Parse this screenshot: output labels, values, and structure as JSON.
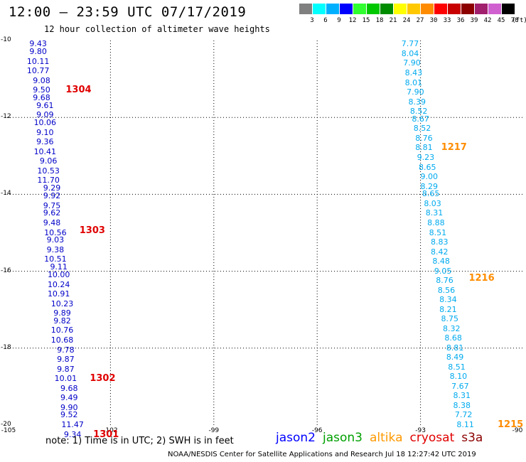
{
  "header": {
    "title": "12:00 – 23:59 UTC 07/17/2019",
    "subtitle": "12 hour collection of altimeter wave heights"
  },
  "scale": {
    "unit": "(ft)",
    "bins": [
      {
        "label": "3",
        "color": "#808080"
      },
      {
        "label": "6",
        "color": "#00ffff"
      },
      {
        "label": "9",
        "color": "#00b0ff"
      },
      {
        "label": "12",
        "color": "#0000ff"
      },
      {
        "label": "15",
        "color": "#30ff30"
      },
      {
        "label": "18",
        "color": "#00c800"
      },
      {
        "label": "21",
        "color": "#008c00"
      },
      {
        "label": "24",
        "color": "#ffff00"
      },
      {
        "label": "27",
        "color": "#ffc800"
      },
      {
        "label": "30",
        "color": "#ff8c00"
      },
      {
        "label": "33",
        "color": "#ff0000"
      },
      {
        "label": "36",
        "color": "#c80000"
      },
      {
        "label": "39",
        "color": "#8c0000"
      },
      {
        "label": "42",
        "color": "#a0206e"
      },
      {
        "label": "45",
        "color": "#d060d0"
      },
      {
        "label": "70",
        "color": "#000000"
      }
    ]
  },
  "map": {
    "lon_ticks": [
      "-105",
      "-102",
      "-99",
      "-96",
      "-93",
      "-90"
    ],
    "lat_ticks": [
      "-10",
      "-12",
      "-14",
      "-16",
      "-18",
      "-20"
    ],
    "lon_range": [
      -105,
      -90
    ],
    "lat_range": [
      -20,
      -10
    ]
  },
  "tracks": [
    {
      "color": "#0000c8",
      "points": [
        {
          "lat": -10.1,
          "lon": -104.1,
          "v": "9.43"
        },
        {
          "lat": -10.3,
          "lon": -104.1,
          "v": "9.80"
        },
        {
          "lat": -10.55,
          "lon": -104.1,
          "v": "10.11"
        },
        {
          "lat": -10.8,
          "lon": -104.1,
          "v": "10.77"
        },
        {
          "lat": -11.05,
          "lon": -104.0,
          "v": "9.08"
        },
        {
          "lat": -11.3,
          "lon": -104.0,
          "v": "9.50"
        },
        {
          "lat": -11.5,
          "lon": -104.0,
          "v": "9.68"
        },
        {
          "lat": -11.7,
          "lon": -103.9,
          "v": "9.61"
        },
        {
          "lat": -11.95,
          "lon": -103.9,
          "v": "9.09"
        },
        {
          "lat": -12.15,
          "lon": -103.9,
          "v": "10.06"
        },
        {
          "lat": -12.4,
          "lon": -103.9,
          "v": "9.10"
        },
        {
          "lat": -12.65,
          "lon": -103.9,
          "v": "9.36"
        },
        {
          "lat": -12.9,
          "lon": -103.9,
          "v": "10.41"
        },
        {
          "lat": -13.15,
          "lon": -103.8,
          "v": "9.06"
        },
        {
          "lat": -13.4,
          "lon": -103.8,
          "v": "10.53"
        },
        {
          "lat": -13.65,
          "lon": -103.8,
          "v": "11.70"
        },
        {
          "lat": -13.85,
          "lon": -103.7,
          "v": "9.29"
        },
        {
          "lat": -14.05,
          "lon": -103.7,
          "v": "9.92"
        },
        {
          "lat": -14.3,
          "lon": -103.7,
          "v": "9.75"
        },
        {
          "lat": -14.5,
          "lon": -103.7,
          "v": "9.62"
        },
        {
          "lat": -14.75,
          "lon": -103.7,
          "v": "9.48"
        },
        {
          "lat": -15.0,
          "lon": -103.6,
          "v": "10.56"
        },
        {
          "lat": -15.2,
          "lon": -103.6,
          "v": "9.03"
        },
        {
          "lat": -15.45,
          "lon": -103.6,
          "v": "9.38"
        },
        {
          "lat": -15.7,
          "lon": -103.6,
          "v": "10.51"
        },
        {
          "lat": -15.9,
          "lon": -103.5,
          "v": "9.11"
        },
        {
          "lat": -16.1,
          "lon": -103.5,
          "v": "10.00"
        },
        {
          "lat": -16.35,
          "lon": -103.5,
          "v": "10.24"
        },
        {
          "lat": -16.6,
          "lon": -103.5,
          "v": "10.91"
        },
        {
          "lat": -16.85,
          "lon": -103.4,
          "v": "10.23"
        },
        {
          "lat": -17.1,
          "lon": -103.4,
          "v": "9.89"
        },
        {
          "lat": -17.3,
          "lon": -103.4,
          "v": "9.82"
        },
        {
          "lat": -17.55,
          "lon": -103.4,
          "v": "10.76"
        },
        {
          "lat": -17.8,
          "lon": -103.4,
          "v": "10.68"
        },
        {
          "lat": -18.05,
          "lon": -103.3,
          "v": "9.78"
        },
        {
          "lat": -18.3,
          "lon": -103.3,
          "v": "9.87"
        },
        {
          "lat": -18.55,
          "lon": -103.3,
          "v": "9.87"
        },
        {
          "lat": -18.8,
          "lon": -103.3,
          "v": "10.01"
        },
        {
          "lat": -19.05,
          "lon": -103.2,
          "v": "9.68"
        },
        {
          "lat": -19.3,
          "lon": -103.2,
          "v": "9.49"
        },
        {
          "lat": -19.55,
          "lon": -103.2,
          "v": "9.90"
        },
        {
          "lat": -19.75,
          "lon": -103.2,
          "v": "9.52"
        },
        {
          "lat": -20.0,
          "lon": -103.1,
          "v": "11.47"
        },
        {
          "lat": -20.25,
          "lon": -103.1,
          "v": "9.34"
        }
      ]
    },
    {
      "color": "#00aaee",
      "points": [
        {
          "lat": -10.1,
          "lon": -93.3,
          "v": "7.77"
        },
        {
          "lat": -10.35,
          "lon": -93.3,
          "v": "8.04"
        },
        {
          "lat": -10.6,
          "lon": -93.25,
          "v": "7.90"
        },
        {
          "lat": -10.85,
          "lon": -93.2,
          "v": "8.43"
        },
        {
          "lat": -11.1,
          "lon": -93.2,
          "v": "8.01"
        },
        {
          "lat": -11.35,
          "lon": -93.15,
          "v": "7.90"
        },
        {
          "lat": -11.6,
          "lon": -93.1,
          "v": "8.39"
        },
        {
          "lat": -11.85,
          "lon": -93.05,
          "v": "8.52"
        },
        {
          "lat": -12.05,
          "lon": -93.0,
          "v": "8.67"
        },
        {
          "lat": -12.3,
          "lon": -92.95,
          "v": "8.52"
        },
        {
          "lat": -12.55,
          "lon": -92.9,
          "v": "8.76"
        },
        {
          "lat": -12.8,
          "lon": -92.9,
          "v": "8.81"
        },
        {
          "lat": -13.05,
          "lon": -92.85,
          "v": "9.23"
        },
        {
          "lat": -13.3,
          "lon": -92.8,
          "v": "8.65"
        },
        {
          "lat": -13.55,
          "lon": -92.75,
          "v": "9.00"
        },
        {
          "lat": -13.8,
          "lon": -92.75,
          "v": "8.29"
        },
        {
          "lat": -14.0,
          "lon": -92.7,
          "v": "8.65"
        },
        {
          "lat": -14.25,
          "lon": -92.65,
          "v": "8.03"
        },
        {
          "lat": -14.5,
          "lon": -92.6,
          "v": "8.31"
        },
        {
          "lat": -14.75,
          "lon": -92.55,
          "v": "8.88"
        },
        {
          "lat": -15.0,
          "lon": -92.5,
          "v": "8.51"
        },
        {
          "lat": -15.25,
          "lon": -92.45,
          "v": "8.83"
        },
        {
          "lat": -15.5,
          "lon": -92.45,
          "v": "8.42"
        },
        {
          "lat": -15.75,
          "lon": -92.4,
          "v": "8.48"
        },
        {
          "lat": -16.0,
          "lon": -92.35,
          "v": "9.05"
        },
        {
          "lat": -16.25,
          "lon": -92.3,
          "v": "8.76"
        },
        {
          "lat": -16.5,
          "lon": -92.25,
          "v": "8.56"
        },
        {
          "lat": -16.75,
          "lon": -92.2,
          "v": "8.34"
        },
        {
          "lat": -17.0,
          "lon": -92.2,
          "v": "8.21"
        },
        {
          "lat": -17.25,
          "lon": -92.15,
          "v": "8.75"
        },
        {
          "lat": -17.5,
          "lon": -92.1,
          "v": "8.32"
        },
        {
          "lat": -17.75,
          "lon": -92.05,
          "v": "8.68"
        },
        {
          "lat": -18.0,
          "lon": -92.0,
          "v": "8.81"
        },
        {
          "lat": -18.25,
          "lon": -92.0,
          "v": "8.49"
        },
        {
          "lat": -18.5,
          "lon": -91.95,
          "v": "8.51"
        },
        {
          "lat": -18.75,
          "lon": -91.9,
          "v": "8.10"
        },
        {
          "lat": -19.0,
          "lon": -91.85,
          "v": "7.67"
        },
        {
          "lat": -19.25,
          "lon": -91.8,
          "v": "8.31"
        },
        {
          "lat": -19.5,
          "lon": -91.8,
          "v": "8.38"
        },
        {
          "lat": -19.75,
          "lon": -91.75,
          "v": "7.72"
        },
        {
          "lat": -20.0,
          "lon": -91.7,
          "v": "8.11"
        }
      ]
    }
  ],
  "pass_labels": [
    {
      "text": "1304",
      "color": "#e00000",
      "lat": -11.3,
      "lon": -103.3
    },
    {
      "text": "1303",
      "color": "#e00000",
      "lat": -14.95,
      "lon": -102.9
    },
    {
      "text": "1302",
      "color": "#e00000",
      "lat": -18.8,
      "lon": -102.6
    },
    {
      "text": "1301",
      "color": "#e00000",
      "lat": -20.25,
      "lon": -102.5
    },
    {
      "text": "1217",
      "color": "#ff8c00",
      "lat": -12.8,
      "lon": -92.4
    },
    {
      "text": "1216",
      "color": "#ff8c00",
      "lat": -16.2,
      "lon": -91.6
    },
    {
      "text": "1215",
      "color": "#ff8c00",
      "lat": -20.0,
      "lon": -90.65
    }
  ],
  "footer": {
    "note": "note: 1) Time is in UTC; 2) SWH is in feet",
    "legend": [
      {
        "name": "jason2",
        "color": "#0000ff"
      },
      {
        "name": "jason3",
        "color": "#00a000"
      },
      {
        "name": "altika",
        "color": "#ff9900"
      },
      {
        "name": "cryosat",
        "color": "#e00000"
      },
      {
        "name": "s3a",
        "color": "#8b0000"
      }
    ],
    "credit": "NOAA/NESDIS Center for Satellite Applications and Research   Jul 18 12:27:42 UTC 2019"
  }
}
